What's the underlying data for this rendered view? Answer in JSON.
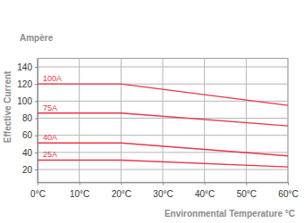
{
  "chart_data": {
    "type": "line",
    "xlabel": "Environmental Temperature °C",
    "ylabel": "Effective Current",
    "annotations": [
      {
        "text": "Ampère"
      }
    ],
    "x": [
      0,
      20,
      60
    ],
    "series": [
      {
        "name": "100A",
        "color": "#e8364a",
        "values": [
          120,
          120,
          95
        ]
      },
      {
        "name": "75A",
        "color": "#e8364a",
        "values": [
          86,
          86,
          71
        ]
      },
      {
        "name": "40A",
        "color": "#e8364a",
        "values": [
          51,
          51,
          36
        ]
      },
      {
        "name": "25A",
        "color": "#e8364a",
        "values": [
          31,
          31,
          23
        ]
      }
    ],
    "xlim": [
      0,
      60
    ],
    "xticks": [
      {
        "value": 0,
        "label": "0°C"
      },
      {
        "value": 10,
        "label": "10°C"
      },
      {
        "value": 20,
        "label": "20°C"
      },
      {
        "value": 30,
        "label": "30°C"
      },
      {
        "value": 40,
        "label": "40°C"
      },
      {
        "value": 50,
        "label": "50°C"
      },
      {
        "value": 60,
        "label": "60°C"
      }
    ],
    "ylim": [
      5,
      150
    ],
    "yticks": [
      20,
      40,
      60,
      80,
      100,
      120,
      140
    ],
    "grid": true
  }
}
